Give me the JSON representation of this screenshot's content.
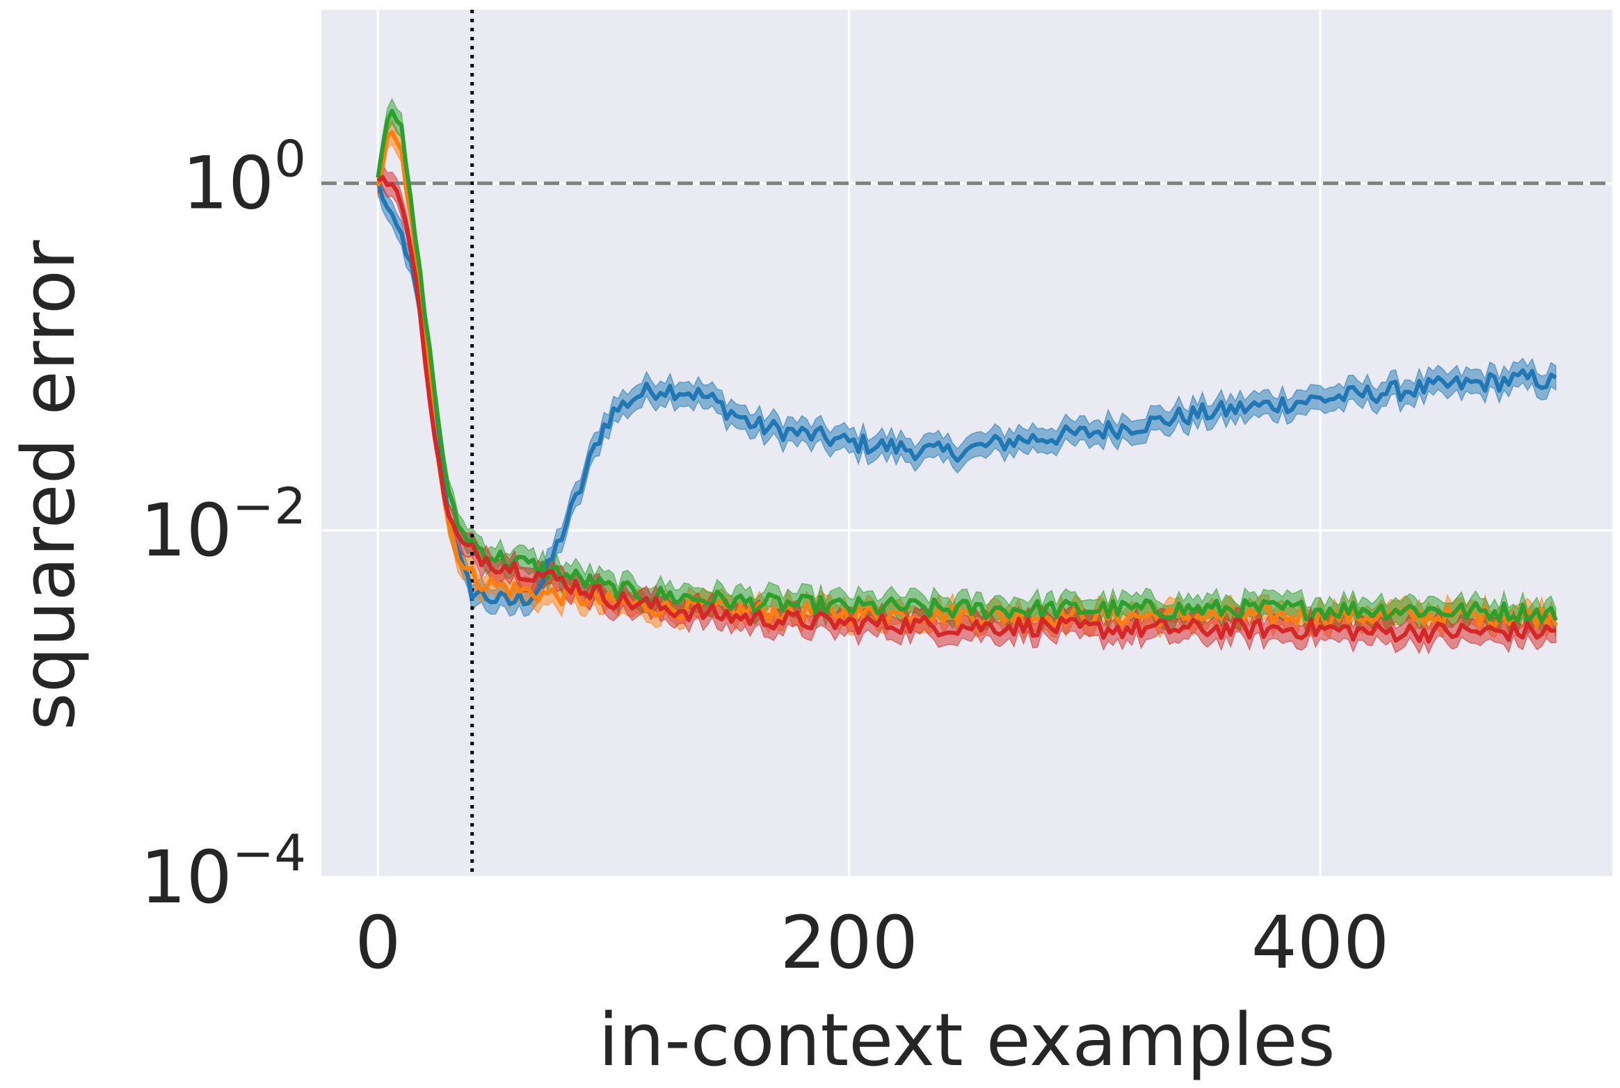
{
  "chart_data": {
    "type": "line",
    "title": "",
    "xlabel": "in-context examples",
    "ylabel": "squared error",
    "yscale": "log",
    "xlim": [
      -24,
      524
    ],
    "ylim": [
      0.0001,
      10
    ],
    "x_ticks": [
      {
        "value": 0,
        "label": "0"
      },
      {
        "value": 200,
        "label": "200"
      },
      {
        "value": 400,
        "label": "400"
      }
    ],
    "y_ticks": [
      {
        "value": 1,
        "base": "10",
        "exp": "0"
      },
      {
        "value": 0.01,
        "base": "10",
        "exp": "−2"
      },
      {
        "value": 0.0001,
        "base": "10",
        "exp": "−4"
      }
    ],
    "grid": true,
    "legend": "none",
    "reference_lines": [
      {
        "orientation": "horizontal",
        "value": 1,
        "style": "dashed",
        "color": "#808080"
      },
      {
        "orientation": "vertical",
        "value": 40,
        "style": "dotted",
        "color": "#000000"
      }
    ],
    "series": [
      {
        "color": "#1f77b4",
        "x": [
          0,
          5,
          10,
          15,
          20,
          25,
          30,
          35,
          40,
          45,
          50,
          55,
          60,
          65,
          70,
          75,
          80,
          85,
          90,
          95,
          100,
          110,
          120,
          130,
          140,
          150,
          160,
          170,
          180,
          190,
          200,
          210,
          220,
          230,
          240,
          250,
          260,
          270,
          280,
          290,
          300,
          310,
          320,
          330,
          340,
          350,
          360,
          370,
          380,
          390,
          400,
          410,
          420,
          430,
          440,
          450,
          460,
          470,
          480,
          490,
          500
        ],
        "y": [
          1.0,
          0.65,
          0.5,
          0.3,
          0.12,
          0.04,
          0.012,
          0.0065,
          0.0045,
          0.0042,
          0.004,
          0.0038,
          0.004,
          0.0042,
          0.005,
          0.0075,
          0.011,
          0.016,
          0.025,
          0.038,
          0.048,
          0.06,
          0.066,
          0.064,
          0.058,
          0.048,
          0.04,
          0.038,
          0.036,
          0.034,
          0.032,
          0.031,
          0.03,
          0.029,
          0.028,
          0.029,
          0.031,
          0.033,
          0.034,
          0.035,
          0.036,
          0.038,
          0.04,
          0.042,
          0.045,
          0.047,
          0.049,
          0.051,
          0.053,
          0.055,
          0.057,
          0.059,
          0.061,
          0.063,
          0.065,
          0.067,
          0.069,
          0.071,
          0.073,
          0.075,
          0.07
        ]
      },
      {
        "color": "#ff7f0e",
        "x": [
          0,
          5,
          10,
          15,
          20,
          25,
          30,
          35,
          40,
          45,
          50,
          60,
          70,
          80,
          90,
          100,
          120,
          140,
          160,
          180,
          200,
          220,
          240,
          260,
          280,
          300,
          320,
          340,
          360,
          380,
          400,
          420,
          440,
          460,
          480,
          500
        ],
        "y": [
          1.0,
          2.0,
          1.5,
          0.5,
          0.13,
          0.03,
          0.011,
          0.0065,
          0.0055,
          0.005,
          0.0048,
          0.0045,
          0.0043,
          0.0042,
          0.004,
          0.0038,
          0.0036,
          0.0035,
          0.0034,
          0.0034,
          0.0033,
          0.0033,
          0.0033,
          0.0032,
          0.0032,
          0.0032,
          0.0032,
          0.0032,
          0.0032,
          0.0032,
          0.0032,
          0.0032,
          0.0032,
          0.0032,
          0.0032,
          0.0032
        ]
      },
      {
        "color": "#2ca02c",
        "x": [
          0,
          5,
          10,
          15,
          20,
          25,
          30,
          35,
          40,
          45,
          50,
          60,
          70,
          80,
          90,
          100,
          120,
          140,
          160,
          180,
          200,
          220,
          240,
          260,
          280,
          300,
          320,
          340,
          360,
          380,
          400,
          420,
          440,
          460,
          480,
          500
        ],
        "y": [
          1.1,
          3.0,
          2.0,
          0.6,
          0.18,
          0.05,
          0.016,
          0.01,
          0.0085,
          0.0075,
          0.007,
          0.0065,
          0.006,
          0.0055,
          0.005,
          0.0045,
          0.0042,
          0.004,
          0.0038,
          0.0037,
          0.0036,
          0.0036,
          0.0035,
          0.0035,
          0.0035,
          0.0035,
          0.0035,
          0.0035,
          0.0035,
          0.0035,
          0.0035,
          0.0035,
          0.0035,
          0.0034,
          0.0034,
          0.0033
        ]
      },
      {
        "color": "#d62728",
        "x": [
          0,
          5,
          10,
          15,
          20,
          25,
          30,
          35,
          40,
          45,
          50,
          60,
          70,
          80,
          90,
          100,
          120,
          140,
          160,
          180,
          200,
          220,
          240,
          260,
          280,
          300,
          320,
          340,
          360,
          380,
          400,
          420,
          440,
          460,
          480,
          500
        ],
        "y": [
          1.0,
          1.05,
          0.8,
          0.35,
          0.1,
          0.028,
          0.012,
          0.0085,
          0.0075,
          0.007,
          0.0065,
          0.006,
          0.0055,
          0.005,
          0.0045,
          0.004,
          0.0036,
          0.0033,
          0.0031,
          0.003,
          0.0029,
          0.0029,
          0.0028,
          0.0028,
          0.0028,
          0.0027,
          0.0027,
          0.0027,
          0.0027,
          0.0027,
          0.0027,
          0.0026,
          0.0026,
          0.0026,
          0.0026,
          0.0026
        ]
      }
    ]
  }
}
